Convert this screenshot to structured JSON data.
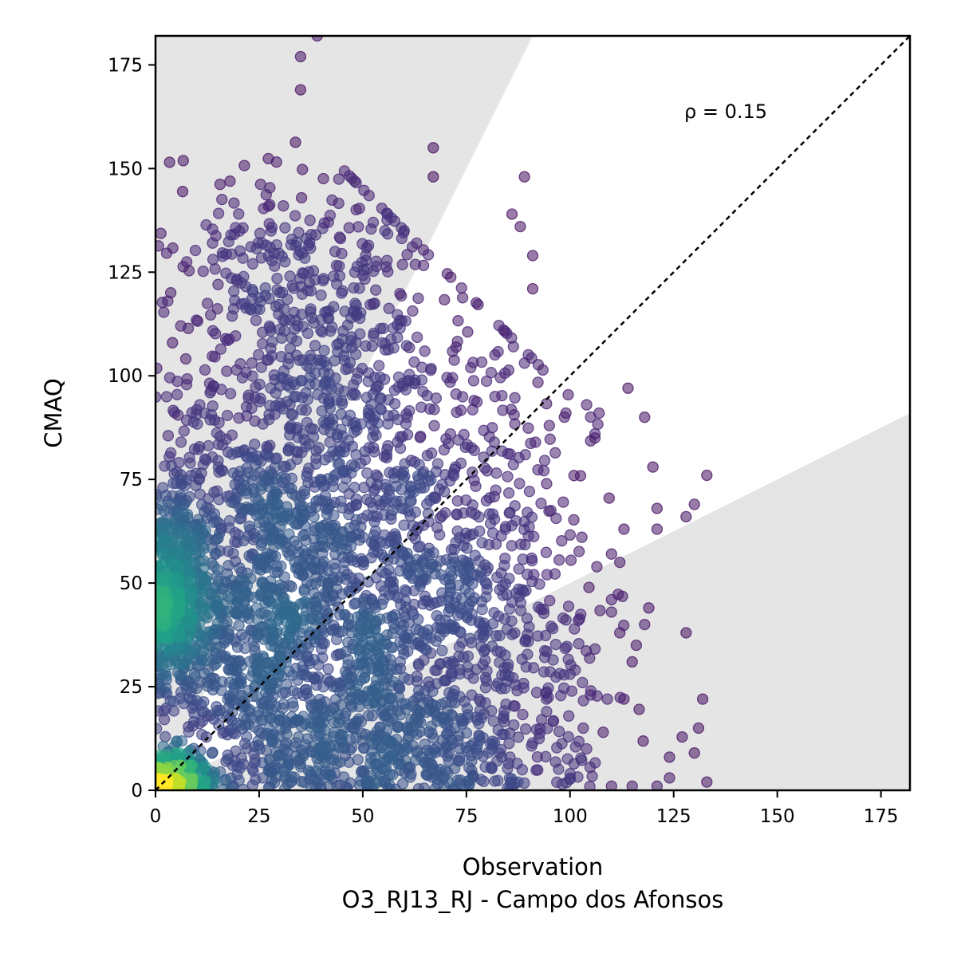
{
  "chart_data": {
    "type": "scatter",
    "xlabel": "Observation",
    "xlabel_sub": "O3_RJ13_RJ - Campo dos Afonsos",
    "ylabel": "CMAQ",
    "xlim": [
      0,
      182
    ],
    "ylim": [
      0,
      182
    ],
    "x_ticks": [
      0,
      25,
      50,
      75,
      100,
      125,
      150,
      175
    ],
    "y_ticks": [
      0,
      25,
      50,
      75,
      100,
      125,
      150,
      175
    ],
    "annotation": "ρ = 0.15",
    "reference_line": "y = x",
    "shaded_band": "outside factor-of-2 wedge (y > 2x and y < x/2)",
    "color_scale": "viridis point density",
    "grid": false,
    "legend": "none",
    "colors": {
      "point_low_density": "#440154",
      "point_mid_density": "#31688e",
      "point_high_density": "#35b779",
      "point_peak_density": "#fde725",
      "shade": "#e5e5e5"
    },
    "clusters": [
      {
        "x": 5,
        "y": 47,
        "sx": 4,
        "sy": 12,
        "n": 380
      },
      {
        "x": 5,
        "y": 3,
        "sx": 4,
        "sy": 3,
        "n": 260
      },
      {
        "x": 22,
        "y": 45,
        "sx": 14,
        "sy": 22,
        "n": 650
      },
      {
        "x": 40,
        "y": 30,
        "sx": 20,
        "sy": 22,
        "n": 650
      },
      {
        "x": 38,
        "y": 85,
        "sx": 20,
        "sy": 28,
        "n": 650
      },
      {
        "x": 60,
        "y": 55,
        "sx": 16,
        "sy": 28,
        "n": 420
      },
      {
        "x": 75,
        "y": 30,
        "sx": 16,
        "sy": 20,
        "n": 280
      },
      {
        "x": 32,
        "y": 125,
        "sx": 16,
        "sy": 16,
        "n": 200
      },
      {
        "x": 60,
        "y": 10,
        "sx": 22,
        "sy": 8,
        "n": 250
      },
      {
        "x": 88,
        "y": 55,
        "sx": 12,
        "sy": 28,
        "n": 140
      }
    ],
    "outliers": [
      [
        39,
        182
      ],
      [
        35,
        177
      ],
      [
        35,
        169
      ],
      [
        89,
        148
      ],
      [
        67,
        155
      ],
      [
        67,
        148
      ],
      [
        114,
        97
      ],
      [
        118,
        90
      ],
      [
        120,
        78
      ],
      [
        121,
        68
      ],
      [
        133,
        76
      ],
      [
        130,
        69
      ],
      [
        128,
        66
      ],
      [
        121,
        63
      ],
      [
        113,
        63
      ],
      [
        110,
        57
      ],
      [
        112,
        55
      ],
      [
        110,
        46
      ],
      [
        110,
        43
      ],
      [
        112,
        38
      ],
      [
        118,
        40
      ],
      [
        119,
        44
      ],
      [
        116,
        35
      ],
      [
        115,
        31
      ],
      [
        113,
        22
      ],
      [
        106,
        86
      ],
      [
        106,
        85
      ],
      [
        128,
        38
      ],
      [
        132,
        22
      ],
      [
        131,
        15
      ],
      [
        124,
        8
      ],
      [
        130,
        9
      ],
      [
        124,
        3
      ],
      [
        133,
        2
      ],
      [
        115,
        1
      ],
      [
        121,
        1
      ],
      [
        108,
        14
      ],
      [
        104,
        10
      ],
      [
        110,
        1
      ],
      [
        100,
        4
      ],
      [
        104,
        93
      ],
      [
        107,
        91
      ],
      [
        99,
        91
      ],
      [
        95,
        88
      ],
      [
        91,
        129
      ],
      [
        88,
        136
      ],
      [
        86,
        139
      ],
      [
        91,
        121
      ],
      [
        100,
        28
      ],
      [
        103,
        26
      ],
      [
        105,
        24
      ],
      [
        109,
        22
      ],
      [
        102,
        41
      ]
    ]
  }
}
